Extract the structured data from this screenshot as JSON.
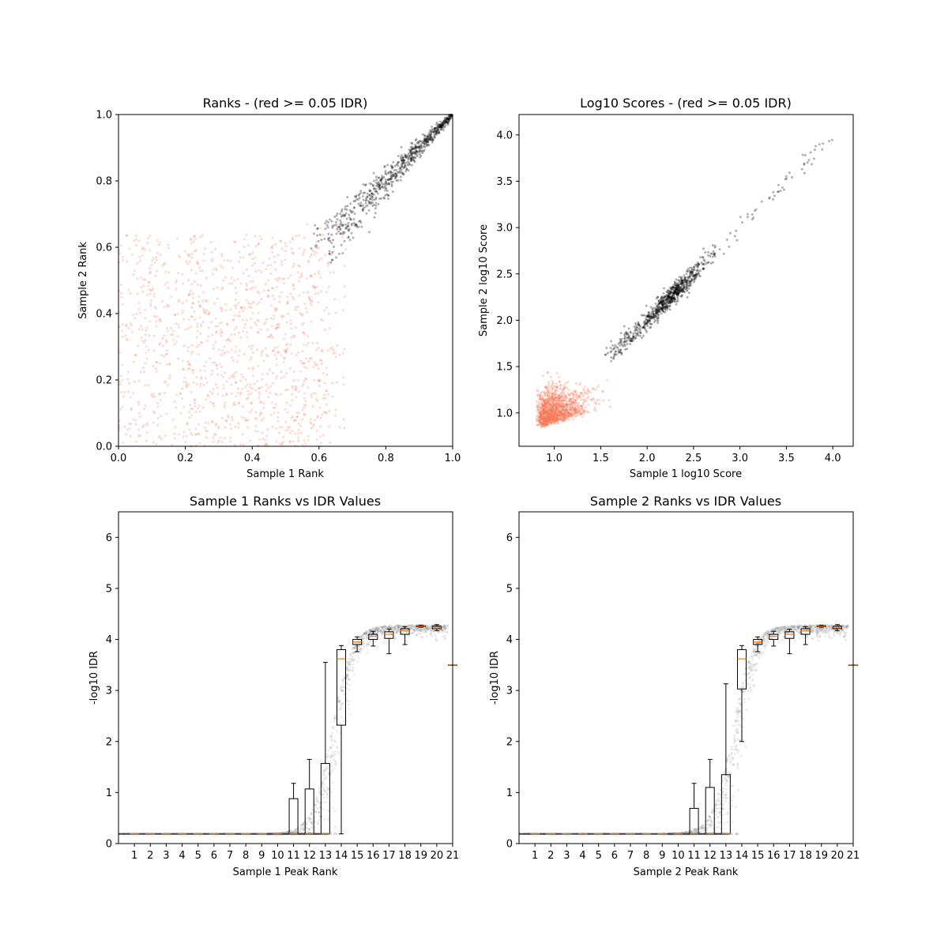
{
  "colors": {
    "pass": "#000000",
    "fail": "#f47a5a",
    "box": "#000000",
    "median": "#ff7f0e",
    "background": "#ffffff"
  },
  "chart_data": [
    {
      "id": "ranks",
      "type": "scatter",
      "title": "Ranks - (red >= 0.05 IDR)",
      "xlabel": "Sample 1 Rank",
      "ylabel": "Sample 2 Rank",
      "xlim": [
        0.0,
        1.0
      ],
      "ylim": [
        0.0,
        1.0
      ],
      "xticks": [
        "0.0",
        "0.2",
        "0.4",
        "0.6",
        "0.8",
        "1.0"
      ],
      "yticks": [
        "0.0",
        "0.2",
        "0.4",
        "0.6",
        "0.8",
        "1.0"
      ],
      "series": [
        {
          "kind": "fail",
          "count": 1250,
          "x_range": [
            0.0,
            0.68
          ],
          "y_range": [
            0.0,
            0.68
          ],
          "clusters": [
            [
              0.33,
              0.3,
              0.22,
              0.22
            ]
          ]
        },
        {
          "kind": "pass",
          "count": 700,
          "trend": [
            [
              0.6,
              0.59
            ],
            [
              0.75,
              0.74
            ],
            [
              1.0,
              1.0
            ]
          ],
          "spread": 0.025
        }
      ]
    },
    {
      "id": "scores",
      "type": "scatter",
      "title": "Log10 Scores - (red >= 0.05 IDR)",
      "xlabel": "Sample 1 log10 Score",
      "ylabel": "Sample 2 log10 Score",
      "xlim": [
        0.62,
        4.22
      ],
      "ylim": [
        0.64,
        4.22
      ],
      "xticks": [
        "1.0",
        "1.5",
        "2.0",
        "2.5",
        "3.0",
        "3.5",
        "4.0"
      ],
      "yticks": [
        "1.0",
        "1.5",
        "2.0",
        "2.5",
        "3.0",
        "3.5",
        "4.0"
      ],
      "series": [
        {
          "kind": "fail",
          "count": 1300,
          "center": [
            1.05,
            1.05
          ],
          "spread": [
            0.22,
            0.2
          ],
          "x_min": 0.8,
          "y_min": 0.82,
          "x_max": 1.75,
          "y_max": 1.7
        },
        {
          "kind": "pass",
          "count": 800,
          "center": [
            2.3,
            2.3
          ],
          "spread": 0.35,
          "x_min": 1.45,
          "x_max": 4.05
        }
      ]
    },
    {
      "id": "idr1",
      "type": "box",
      "title": "Sample 1 Ranks vs IDR Values",
      "xlabel": "Sample 1 Peak Rank",
      "ylabel": "-log10 IDR",
      "xlim": [
        0,
        21
      ],
      "ylim": [
        0,
        6.5
      ],
      "xticks": [
        "1",
        "2",
        "3",
        "4",
        "5",
        "6",
        "7",
        "8",
        "9",
        "10",
        "11",
        "12",
        "13",
        "14",
        "15",
        "16",
        "17",
        "18",
        "19",
        "20",
        "21"
      ],
      "yticks": [
        "0",
        "1",
        "2",
        "3",
        "4",
        "5",
        "6"
      ],
      "boxes": [
        {
          "pos": 11,
          "whislo": 0.19,
          "q1": 0.19,
          "med": 0.19,
          "q3": 0.88,
          "whishi": 1.18
        },
        {
          "pos": 12,
          "whislo": 0.19,
          "q1": 0.19,
          "med": 0.19,
          "q3": 1.07,
          "whishi": 1.65
        },
        {
          "pos": 13,
          "whislo": 0.19,
          "q1": 0.19,
          "med": 0.19,
          "q3": 1.57,
          "whishi": 3.55
        },
        {
          "pos": 14,
          "whislo": 0.19,
          "q1": 2.32,
          "med": 3.62,
          "q3": 3.8,
          "whishi": 3.88
        },
        {
          "pos": 15,
          "whislo": 3.76,
          "q1": 3.9,
          "med": 3.95,
          "q3": 4.0,
          "whishi": 4.05
        },
        {
          "pos": 16,
          "whislo": 3.87,
          "q1": 4.0,
          "med": 4.06,
          "q3": 4.1,
          "whishi": 4.16
        },
        {
          "pos": 17,
          "whislo": 3.72,
          "q1": 4.02,
          "med": 4.1,
          "q3": 4.15,
          "whishi": 4.2
        },
        {
          "pos": 18,
          "whislo": 3.9,
          "q1": 4.1,
          "med": 4.17,
          "q3": 4.21,
          "whishi": 4.25
        },
        {
          "pos": 19,
          "whislo": 4.24,
          "q1": 4.25,
          "med": 4.26,
          "q3": 4.27,
          "whishi": 4.28
        },
        {
          "pos": 20,
          "whislo": 4.17,
          "q1": 4.21,
          "med": 4.24,
          "q3": 4.26,
          "whishi": 4.29
        },
        {
          "pos": 21,
          "whislo": 3.5,
          "q1": 3.5,
          "med": 3.5,
          "q3": 3.5,
          "whishi": 3.5
        }
      ],
      "flat_medians": {
        "from": 1,
        "to": 10,
        "value": 0.19
      },
      "scatter": {
        "rise_start": 9.4,
        "rise_mid": 13.4,
        "plateau": 4.28,
        "floor": 0.19
      }
    },
    {
      "id": "idr2",
      "type": "box",
      "title": "Sample 2 Ranks vs IDR Values",
      "xlabel": "Sample 2 Peak Rank",
      "ylabel": "-log10 IDR",
      "xlim": [
        0,
        21
      ],
      "ylim": [
        0,
        6.5
      ],
      "xticks": [
        "1",
        "2",
        "3",
        "4",
        "5",
        "6",
        "7",
        "8",
        "9",
        "10",
        "11",
        "12",
        "13",
        "14",
        "15",
        "16",
        "17",
        "18",
        "19",
        "20",
        "21"
      ],
      "yticks": [
        "0",
        "1",
        "2",
        "3",
        "4",
        "5",
        "6"
      ],
      "boxes": [
        {
          "pos": 11,
          "whislo": 0.19,
          "q1": 0.19,
          "med": 0.19,
          "q3": 0.69,
          "whishi": 1.18
        },
        {
          "pos": 12,
          "whislo": 0.19,
          "q1": 0.19,
          "med": 0.19,
          "q3": 1.1,
          "whishi": 1.65
        },
        {
          "pos": 13,
          "whislo": 0.19,
          "q1": 0.19,
          "med": 0.19,
          "q3": 1.35,
          "whishi": 3.13
        },
        {
          "pos": 14,
          "whislo": 2.0,
          "q1": 3.03,
          "med": 3.62,
          "q3": 3.8,
          "whishi": 3.88
        },
        {
          "pos": 15,
          "whislo": 3.76,
          "q1": 3.9,
          "med": 3.95,
          "q3": 4.0,
          "whishi": 4.05
        },
        {
          "pos": 16,
          "whislo": 3.87,
          "q1": 4.0,
          "med": 4.06,
          "q3": 4.1,
          "whishi": 4.16
        },
        {
          "pos": 17,
          "whislo": 3.72,
          "q1": 4.02,
          "med": 4.1,
          "q3": 4.15,
          "whishi": 4.2
        },
        {
          "pos": 18,
          "whislo": 3.9,
          "q1": 4.1,
          "med": 4.17,
          "q3": 4.21,
          "whishi": 4.25
        },
        {
          "pos": 19,
          "whislo": 4.24,
          "q1": 4.25,
          "med": 4.26,
          "q3": 4.27,
          "whishi": 4.28
        },
        {
          "pos": 20,
          "whislo": 4.17,
          "q1": 4.21,
          "med": 4.24,
          "q3": 4.26,
          "whishi": 4.29
        },
        {
          "pos": 21,
          "whislo": 3.5,
          "q1": 3.5,
          "med": 3.5,
          "q3": 3.5,
          "whishi": 3.5
        }
      ],
      "flat_medians": {
        "from": 1,
        "to": 10,
        "value": 0.19
      },
      "scatter": {
        "rise_start": 9.4,
        "rise_mid": 13.4,
        "plateau": 4.28,
        "floor": 0.19
      }
    }
  ]
}
